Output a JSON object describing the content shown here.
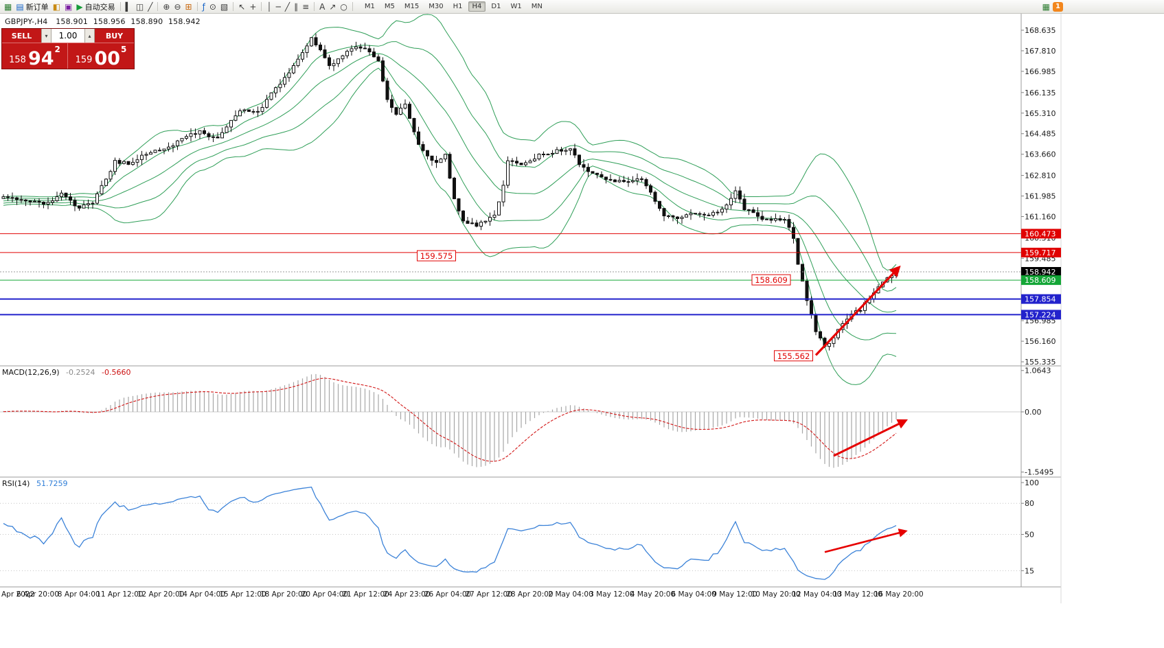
{
  "toolbar": {
    "groups": [
      {
        "name": "main",
        "items": [
          {
            "name": "new-chart",
            "glyph": "▦",
            "color": "#2e7d32"
          },
          {
            "name": "new-order",
            "glyph": "▤",
            "color": "#1663c7",
            "label": "新订单"
          },
          {
            "name": "market-watch",
            "glyph": "◧",
            "color": "#c98a12"
          },
          {
            "name": "navigator",
            "glyph": "▣",
            "color": "#7b1fa2"
          },
          {
            "name": "autotrading",
            "glyph": "▶",
            "color": "#169c3a",
            "label": "自动交易"
          }
        ]
      },
      {
        "name": "chart-type",
        "items": [
          {
            "name": "bar-chart",
            "glyph": "▍",
            "color": "#3a3a3a"
          },
          {
            "name": "candlestick-chart",
            "glyph": "◫",
            "color": "#3a3a3a"
          },
          {
            "name": "line-chart",
            "glyph": "╱",
            "color": "#3a3a3a"
          }
        ]
      },
      {
        "name": "zoom",
        "items": [
          {
            "name": "zoom-in",
            "glyph": "⊕",
            "color": "#3a3a3a"
          },
          {
            "name": "zoom-out",
            "glyph": "⊖",
            "color": "#3a3a3a"
          },
          {
            "name": "tile-windows",
            "glyph": "⊞",
            "color": "#c96a12"
          }
        ]
      },
      {
        "name": "chart-tools",
        "items": [
          {
            "name": "indicators",
            "glyph": "ƒ",
            "color": "#1663c7"
          },
          {
            "name": "periods",
            "glyph": "⊙",
            "color": "#3a3a3a"
          },
          {
            "name": "templates",
            "glyph": "▧",
            "color": "#3a3a3a"
          }
        ]
      },
      {
        "name": "cursor-tools",
        "items": [
          {
            "name": "cursor",
            "glyph": "↖",
            "color": "#3a3a3a"
          },
          {
            "name": "crosshair",
            "glyph": "+",
            "color": "#3a3a3a"
          }
        ]
      },
      {
        "name": "line-tools",
        "items": [
          {
            "name": "vertical-line",
            "glyph": "│",
            "color": "#3a3a3a"
          },
          {
            "name": "horizontal-line",
            "glyph": "─",
            "color": "#3a3a3a"
          },
          {
            "name": "trendline",
            "glyph": "╱",
            "color": "#3a3a3a"
          },
          {
            "name": "equidistant-channel",
            "glyph": "∥",
            "color": "#3a3a3a"
          },
          {
            "name": "fibonacci",
            "glyph": "≡",
            "color": "#3a3a3a"
          }
        ]
      },
      {
        "name": "object-tools",
        "items": [
          {
            "name": "text-tool",
            "glyph": "A",
            "color": "#3a3a3a"
          },
          {
            "name": "arrow-object",
            "glyph": "↗",
            "color": "#3a3a3a"
          },
          {
            "name": "shapes",
            "glyph": "○",
            "color": "#3a3a3a"
          }
        ]
      }
    ],
    "timeframes": {
      "items": [
        "M1",
        "M5",
        "M15",
        "M30",
        "H1",
        "H4",
        "D1",
        "W1",
        "MN"
      ],
      "active": "H4"
    },
    "notification": {
      "count": "1"
    }
  },
  "chart": {
    "header": {
      "symbol_period": "GBPJPY-,H4",
      "open": "158.901",
      "high": "158.956",
      "low": "158.890",
      "close": "158.942"
    },
    "order_panel": {
      "sell_label": "SELL",
      "buy_label": "BUY",
      "volume": "1.00",
      "stepper_down": "▾",
      "stepper_up": "▴",
      "sell_price": {
        "small": "158",
        "big": "94",
        "sup": "2"
      },
      "buy_price": {
        "small": "159",
        "big": "00",
        "sup": "5"
      }
    }
  },
  "price_scale": {
    "ticks": [
      "168.635",
      "167.810",
      "166.985",
      "166.135",
      "165.310",
      "164.485",
      "163.660",
      "162.810",
      "161.985",
      "161.160",
      "160.310",
      "159.485",
      "156.985",
      "156.160",
      "155.335"
    ]
  },
  "macd_panel": {
    "label": "MACD(12,26,9)",
    "value": "-0.2524",
    "signal": "-0.5660",
    "ticks": [
      "1.0643",
      "0.00",
      "-1.5495"
    ]
  },
  "rsi_panel": {
    "label": "RSI(14)",
    "value": "51.7259",
    "ticks": [
      "100",
      "80",
      "50",
      "15"
    ]
  },
  "x_axis": {
    "labels": [
      "Apr 2022",
      "6 Apr 20:00",
      "8 Apr 04:00",
      "11 Apr 12:00",
      "12 Apr 20:00",
      "14 Apr 04:00",
      "15 Apr 12:00",
      "18 Apr 20:00",
      "20 Apr 04:00",
      "21 Apr 12:00",
      "24 Apr 23:00",
      "26 Apr 04:00",
      "27 Apr 12:00",
      "28 Apr 20:00",
      "2 May 04:00",
      "3 May 12:00",
      "4 May 20:00",
      "6 May 04:00",
      "9 May 12:00",
      "10 May 20:00",
      "12 May 04:00",
      "13 May 12:00",
      "16 May 20:00"
    ]
  },
  "chart_data": {
    "type": "candlestick",
    "symbol": "GBPJPY-",
    "timeframe": "H4",
    "price_range": [
      155.335,
      168.635
    ],
    "price_path": [
      [
        -40,
        161.7
      ],
      [
        -30,
        161.95
      ],
      [
        -20,
        161.6
      ],
      [
        -12,
        161.9
      ],
      [
        -5,
        161.7
      ],
      [
        0,
        161.9
      ],
      [
        5,
        161.8
      ],
      [
        9,
        161.65
      ],
      [
        13,
        162.05
      ],
      [
        17,
        161.5
      ],
      [
        20,
        161.75
      ],
      [
        25,
        163.35
      ],
      [
        28,
        163.3
      ],
      [
        33,
        163.75
      ],
      [
        37,
        163.9
      ],
      [
        40,
        164.35
      ],
      [
        44,
        164.55
      ],
      [
        48,
        164.3
      ],
      [
        53,
        165.45
      ],
      [
        57,
        165.35
      ],
      [
        60,
        166.1
      ],
      [
        64,
        166.9
      ],
      [
        67,
        167.7
      ],
      [
        69,
        168.3
      ],
      [
        71,
        167.9
      ],
      [
        73,
        167.2
      ],
      [
        76,
        167.65
      ],
      [
        79,
        167.95
      ],
      [
        82,
        167.8
      ],
      [
        84,
        167.4
      ],
      [
        86,
        165.8
      ],
      [
        88,
        165.3
      ],
      [
        90,
        165.7
      ],
      [
        93,
        164.0
      ],
      [
        95,
        163.6
      ],
      [
        97,
        163.35
      ],
      [
        99,
        163.6
      ],
      [
        101,
        161.9
      ],
      [
        103,
        160.95
      ],
      [
        106,
        160.8
      ],
      [
        108,
        161.0
      ],
      [
        110,
        161.2
      ],
      [
        112,
        162.4
      ],
      [
        113,
        163.35
      ],
      [
        116,
        163.3
      ],
      [
        120,
        163.6
      ],
      [
        124,
        163.8
      ],
      [
        127,
        163.9
      ],
      [
        129,
        163.25
      ],
      [
        132,
        162.85
      ],
      [
        136,
        162.6
      ],
      [
        140,
        162.5
      ],
      [
        143,
        162.7
      ],
      [
        146,
        161.8
      ],
      [
        148,
        161.25
      ],
      [
        151,
        161.1
      ],
      [
        154,
        161.35
      ],
      [
        158,
        161.2
      ],
      [
        162,
        161.6
      ],
      [
        164,
        162.2
      ],
      [
        166,
        161.5
      ],
      [
        169,
        161.15
      ],
      [
        172,
        161.0
      ],
      [
        175,
        161.1
      ],
      [
        177,
        160.3
      ],
      [
        178,
        159.3
      ],
      [
        180,
        157.8
      ],
      [
        182,
        156.6
      ],
      [
        184,
        155.9
      ],
      [
        186,
        156.35
      ],
      [
        188,
        156.9
      ],
      [
        190,
        157.2
      ],
      [
        192,
        157.45
      ],
      [
        194,
        157.9
      ],
      [
        196,
        158.35
      ],
      [
        198,
        158.75
      ],
      [
        200,
        158.94
      ]
    ],
    "indicators": {
      "bollinger": {
        "period": 20,
        "deviations": [
          1,
          2
        ],
        "color": "#2e9e57"
      },
      "macd": {
        "fast": 12,
        "slow": 26,
        "signal_period": 9,
        "value": -0.2524,
        "signal": -0.566,
        "scale_max": 1.0643,
        "scale_min": -1.5495,
        "histogram_color": "#a6a6a6",
        "signal_color": "#d21616"
      },
      "rsi": {
        "period": 14,
        "value": 51.7259,
        "levels": [
          15,
          50,
          80
        ],
        "color": "#3b82d8"
      }
    },
    "levels": [
      {
        "price": "160.473",
        "line_color": "#e00000",
        "box_color": "#e00000",
        "style": "solid",
        "width": 1
      },
      {
        "price": "159.717",
        "line_color": "#e00000",
        "box_color": "#e00000",
        "style": "solid",
        "width": 1
      },
      {
        "price": "158.942",
        "line_color": "#9a9a9a",
        "box_color": "#000000",
        "style": "dash",
        "width": 1,
        "role": "bid-price"
      },
      {
        "price": "158.609",
        "line_color": "#14a637",
        "box_color": "#14a637",
        "style": "solid",
        "width": 1
      },
      {
        "price": "157.854",
        "line_color": "#2222cc",
        "box_color": "#2222cc",
        "style": "solid",
        "width": 2
      },
      {
        "price": "157.224",
        "line_color": "#2222cc",
        "box_color": "#2222cc",
        "style": "solid",
        "width": 2
      }
    ],
    "annotations": [
      {
        "text": "159.575",
        "i": 97,
        "price": 159.575
      },
      {
        "text": "158.609",
        "i": 172,
        "price": 158.609
      },
      {
        "text": "155.562",
        "i": 177,
        "price": 155.562
      }
    ],
    "arrows": {
      "color": "#e60000",
      "price": {
        "from": [
          182,
          155.6
        ],
        "to": [
          200.5,
          159.1
        ]
      },
      "macd": {
        "from": [
          186,
          -1.13
        ],
        "to": [
          202,
          -0.23
        ]
      },
      "rsi": {
        "from": [
          184,
          33
        ],
        "to": [
          202,
          53
        ]
      }
    }
  }
}
